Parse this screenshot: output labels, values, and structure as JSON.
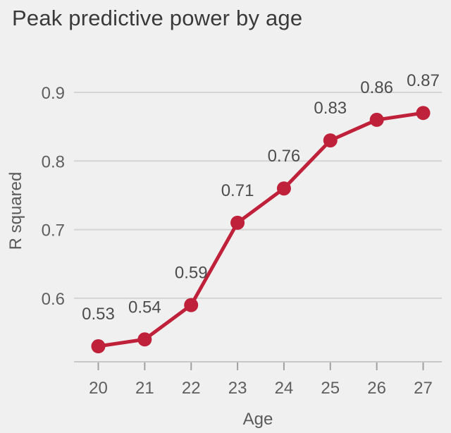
{
  "figure": {
    "background_color": "#f0f0f0"
  },
  "chart_data": {
    "type": "line",
    "title": "Peak predictive power by age",
    "xlabel": "Age",
    "ylabel": "R squared",
    "x": [
      20,
      21,
      22,
      23,
      24,
      25,
      26,
      27
    ],
    "x_tick_labels": [
      "20",
      "21",
      "22",
      "23",
      "24",
      "25",
      "26",
      "27"
    ],
    "values": [
      0.53,
      0.54,
      0.59,
      0.71,
      0.76,
      0.83,
      0.86,
      0.87
    ],
    "point_labels": [
      "0.53",
      "0.54",
      "0.59",
      "0.71",
      "0.76",
      "0.83",
      "0.86",
      "0.87"
    ],
    "y_ticks": [
      0.6,
      0.7,
      0.8,
      0.9
    ],
    "y_tick_labels": [
      "0.6",
      "0.7",
      "0.8",
      "0.9"
    ],
    "ylim": [
      0.51,
      0.95
    ],
    "xlim": [
      19.5,
      27.4
    ],
    "grid": "horizontal-only",
    "legend": "none",
    "colors": {
      "line": "#c0213a",
      "marker": "#c0213a",
      "background": "#f0f0f0",
      "gridline": "#d4d4d4",
      "axis_line": "#c8c8c8",
      "tick_mark": "#a0a0a0",
      "tick_label": "#5f5f5f",
      "value_label": "#4d4d4d",
      "title": "#3a3a3a",
      "axis_title": "#5a5a5a"
    }
  }
}
